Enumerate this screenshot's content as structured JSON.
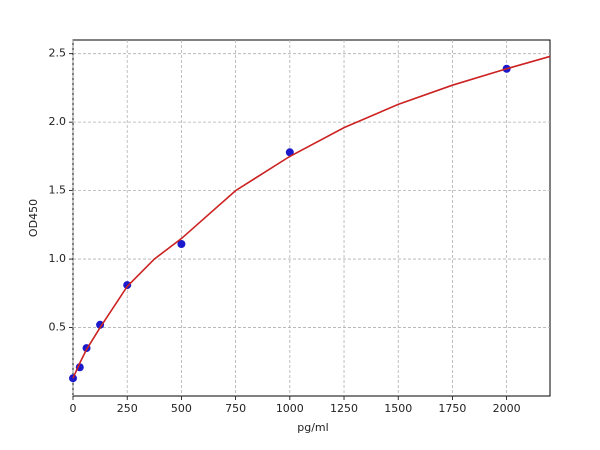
{
  "chart_data": {
    "type": "scatter",
    "x_label": "pg/ml",
    "y_label": "OD450",
    "xlim": [
      0,
      2200
    ],
    "ylim": [
      0,
      2.6
    ],
    "xticks": [
      0,
      250,
      500,
      750,
      1000,
      1250,
      1500,
      1750,
      2000
    ],
    "yticks": [
      0.5,
      {
        "value": 1,
        "label": "1.0"
      },
      1.5,
      {
        "value": 2,
        "label": "2.0"
      },
      2.5
    ],
    "grid": true,
    "series": [
      {
        "type": "scatter",
        "color": "#1a1acc",
        "x": [
          0,
          31.25,
          62.5,
          125,
          250,
          500,
          1000,
          2000
        ],
        "values": [
          0.13,
          0.21,
          0.35,
          0.52,
          0.81,
          1.11,
          1.78,
          2.39
        ]
      },
      {
        "type": "line",
        "color": "#cc2222",
        "x": [
          0,
          31.25,
          62.5,
          125,
          250,
          375,
          500,
          750,
          1000,
          1250,
          1500,
          1750,
          2000,
          2200
        ],
        "values": [
          0.13,
          0.24,
          0.34,
          0.5,
          0.8,
          1.0,
          1.15,
          1.5,
          1.75,
          1.96,
          2.13,
          2.27,
          2.39,
          2.48
        ]
      }
    ]
  }
}
